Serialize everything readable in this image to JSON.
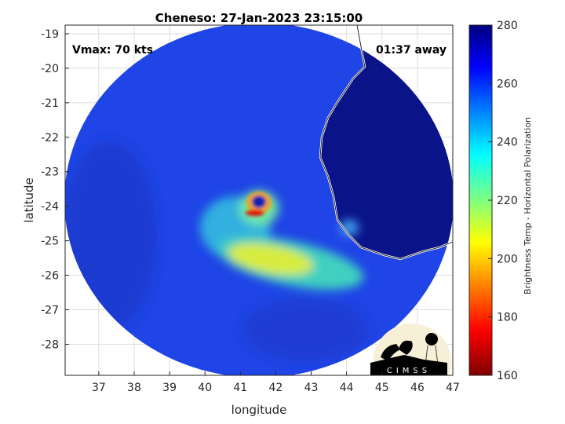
{
  "title": "Cheneso: 27-Jan-2023 23:15:00",
  "annotations": {
    "vmax": "Vmax: 70 kts",
    "away": "01:37 away"
  },
  "xaxis": {
    "label": "longitude",
    "range": [
      36.05,
      47
    ],
    "ticks": [
      "37",
      "38",
      "39",
      "40",
      "41",
      "42",
      "43",
      "44",
      "45",
      "46",
      "47"
    ]
  },
  "yaxis": {
    "label": "latitude",
    "range": [
      -28.9,
      -18.75
    ],
    "ticks": [
      "-19",
      "-20",
      "-21",
      "-22",
      "-23",
      "-24",
      "-25",
      "-26",
      "-27",
      "-28"
    ]
  },
  "colorbar": {
    "label": "Brightness Temp - Horizontal Polarization",
    "range": [
      160,
      280
    ],
    "ticks": [
      "280",
      "260",
      "240",
      "220",
      "200",
      "180",
      "160"
    ],
    "colormap": "jet"
  },
  "grid": true,
  "logo": {
    "text": "CIMSS"
  },
  "colors": {
    "background_disk": "#1f45e6",
    "land": "#0a1488",
    "coast": "#ffffff",
    "eyewall": "#e01010"
  }
}
